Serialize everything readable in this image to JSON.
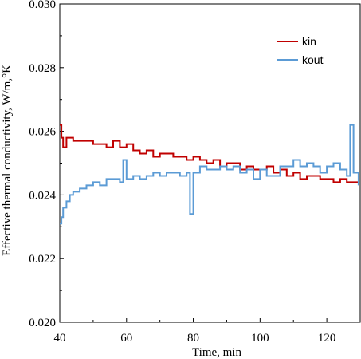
{
  "chart_data": {
    "type": "line",
    "title": "",
    "xlabel": "Time, min",
    "ylabel": "Effective thermal conductivity,  W/m,°K",
    "xlim": [
      40,
      130
    ],
    "ylim": [
      0.02,
      0.03
    ],
    "xticks": [
      40,
      60,
      80,
      100,
      120
    ],
    "xtick_labels": [
      "40",
      "60",
      "80",
      "100",
      "120"
    ],
    "yticks": [
      0.02,
      0.022,
      0.024,
      0.026,
      0.028,
      0.03
    ],
    "ytick_labels": [
      "0.020",
      "0.022",
      "0.024",
      "0.026",
      "0.028",
      "0.030"
    ],
    "grid": false,
    "legend_position": "top-right",
    "series": [
      {
        "name": "kin",
        "color": "#c00000",
        "x": [
          40,
          40.5,
          41,
          42,
          44,
          46,
          48,
          50,
          52,
          54,
          56,
          58,
          60,
          62,
          64,
          66,
          68,
          70,
          72,
          74,
          76,
          78,
          80,
          82,
          84,
          86,
          88,
          90,
          92,
          94,
          96,
          98,
          100,
          102,
          104,
          106,
          108,
          110,
          112,
          114,
          116,
          118,
          120,
          122,
          124,
          126,
          128,
          129.5
        ],
        "y": [
          0.0262,
          0.0258,
          0.0255,
          0.0258,
          0.0257,
          0.0257,
          0.0257,
          0.0256,
          0.0256,
          0.0255,
          0.0257,
          0.0255,
          0.0256,
          0.0254,
          0.0253,
          0.0254,
          0.0252,
          0.0253,
          0.0253,
          0.0252,
          0.0252,
          0.0251,
          0.0252,
          0.0251,
          0.025,
          0.0251,
          0.0249,
          0.025,
          0.025,
          0.0248,
          0.0249,
          0.0248,
          0.0248,
          0.0249,
          0.0247,
          0.0248,
          0.0246,
          0.0247,
          0.0245,
          0.0246,
          0.0246,
          0.0245,
          0.0245,
          0.0244,
          0.0245,
          0.0244,
          0.0244,
          0.0244
        ]
      },
      {
        "name": "kout",
        "color": "#5b9bd5",
        "x": [
          40,
          40.5,
          41,
          42,
          43,
          44,
          46,
          48,
          50,
          52,
          54,
          56,
          58,
          59,
          60,
          62,
          64,
          66,
          68,
          70,
          72,
          74,
          76,
          78,
          79,
          80,
          82,
          84,
          86,
          88,
          90,
          92,
          94,
          96,
          98,
          100,
          102,
          104,
          106,
          108,
          110,
          112,
          114,
          116,
          118,
          120,
          122,
          124,
          126,
          127,
          128,
          129.5
        ],
        "y": [
          0.0231,
          0.0233,
          0.0236,
          0.0238,
          0.024,
          0.0241,
          0.0242,
          0.0243,
          0.0244,
          0.0243,
          0.0245,
          0.0245,
          0.0244,
          0.0251,
          0.0245,
          0.0246,
          0.0245,
          0.0246,
          0.0247,
          0.0246,
          0.0247,
          0.0247,
          0.0246,
          0.0247,
          0.0234,
          0.0247,
          0.0249,
          0.0248,
          0.0248,
          0.0249,
          0.0248,
          0.0249,
          0.0247,
          0.0248,
          0.0245,
          0.0248,
          0.0246,
          0.0246,
          0.0249,
          0.0249,
          0.0251,
          0.0249,
          0.025,
          0.0249,
          0.0247,
          0.0249,
          0.025,
          0.0248,
          0.0246,
          0.0262,
          0.0247,
          0.0243
        ]
      }
    ]
  }
}
